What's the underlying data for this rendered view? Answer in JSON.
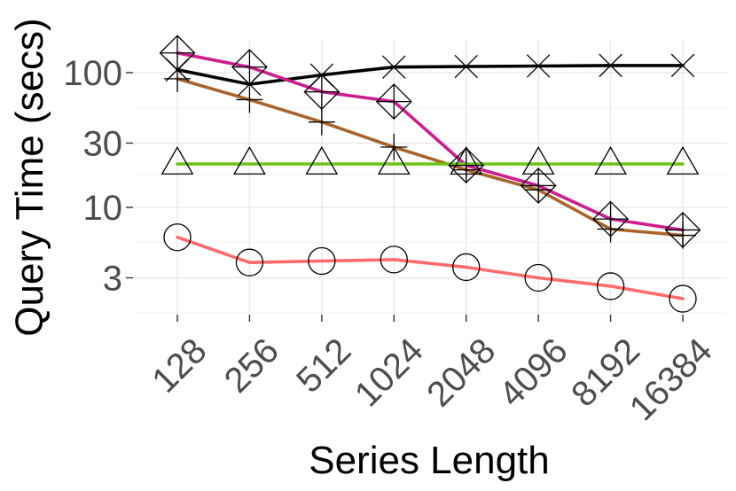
{
  "chart_data": {
    "type": "line",
    "title": "",
    "xlabel": "Series Length",
    "ylabel": "Query Time (secs)",
    "y_scale": "log10",
    "ylim": [
      1.6,
      175
    ],
    "grid": true,
    "legend": "none",
    "categories": [
      "128",
      "256",
      "512",
      "1024",
      "2048",
      "4096",
      "8192",
      "16384"
    ],
    "y_ticks": [
      3,
      10,
      30,
      100
    ],
    "y_tick_labels": [
      "3",
      "10",
      "30",
      "100"
    ],
    "series": [
      {
        "color": "#000000",
        "marker": "cross-x",
        "values": [
          105,
          82,
          96,
          110,
          111,
          112,
          113,
          113
        ]
      },
      {
        "color": "#cd1e8f",
        "marker": "diamond-plus",
        "values": [
          140,
          110,
          72,
          61,
          20.5,
          14.5,
          8.2,
          6.8
        ]
      },
      {
        "color": "#a8642a",
        "marker": "plus",
        "values": [
          90,
          63,
          43,
          28,
          19,
          13.5,
          6.9,
          6.2
        ]
      },
      {
        "color": "#6cc417",
        "marker": "triangle",
        "values": [
          21,
          21,
          21,
          21,
          21,
          21,
          21,
          21
        ]
      },
      {
        "color": "#ff6b6b",
        "marker": "circle",
        "values": [
          6.0,
          3.9,
          4.0,
          4.1,
          3.6,
          3.0,
          2.6,
          2.1
        ]
      }
    ]
  }
}
